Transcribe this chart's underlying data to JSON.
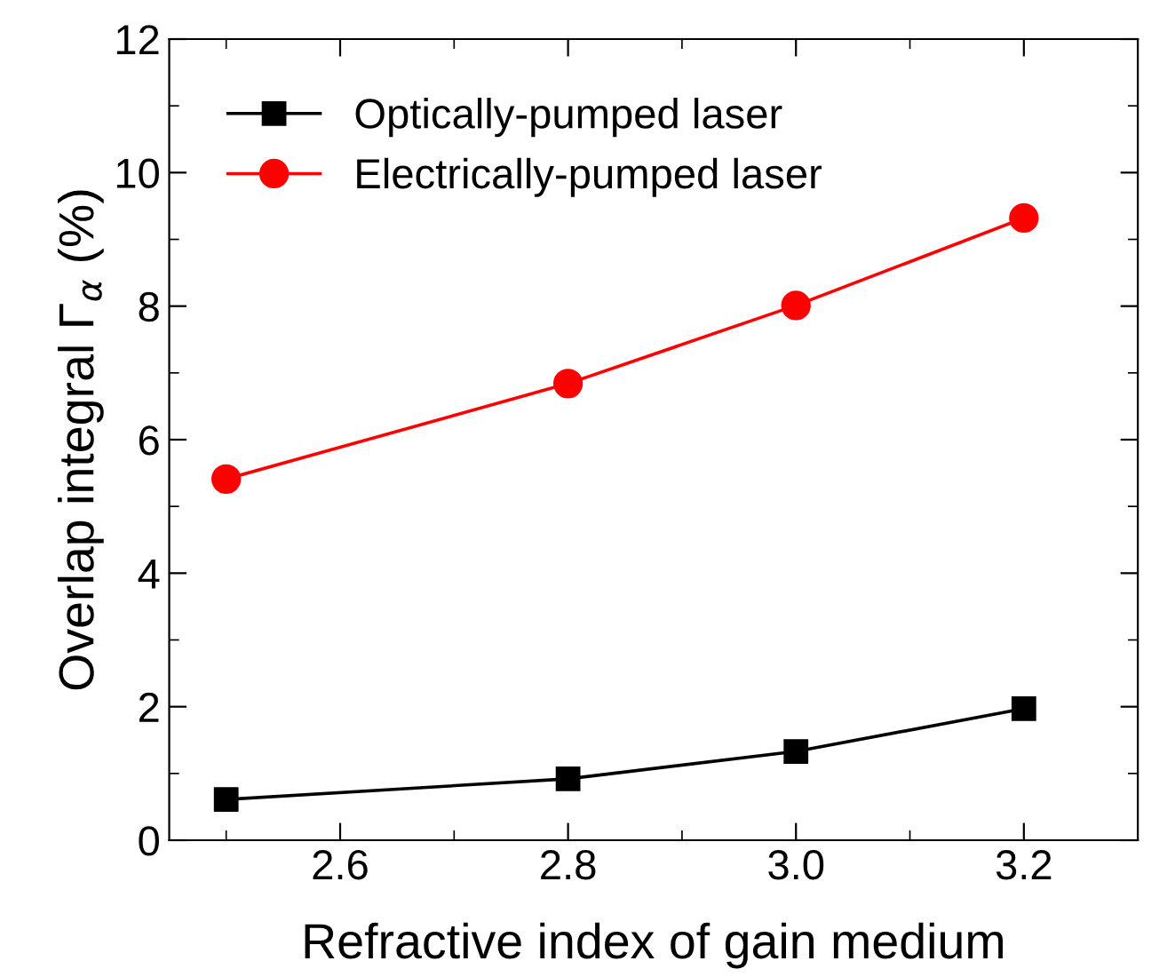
{
  "chart_data": {
    "type": "line",
    "xlabel": "Refractive index of gain medium",
    "ylabel": "Overlap integral Γ$_{α}$ (%)",
    "x": [
      2.5,
      2.8,
      3.0,
      3.2
    ],
    "series": [
      {
        "name": "Optically-pumped laser",
        "color": "#000000",
        "marker": "square",
        "values": [
          0.61,
          0.92,
          1.33,
          1.97
        ]
      },
      {
        "name": "Electrically-pumped laser",
        "color": "#ff0000",
        "marker": "circle",
        "values": [
          5.41,
          6.84,
          8.01,
          9.32
        ]
      }
    ],
    "xlim": [
      2.45,
      3.3
    ],
    "xticks": [
      {
        "value": 2.6,
        "label": "2.6"
      },
      {
        "value": 2.8,
        "label": "2.8"
      },
      {
        "value": 3.0,
        "label": "3.0"
      },
      {
        "value": 3.2,
        "label": "3.2"
      }
    ],
    "ylim": [
      0,
      12
    ],
    "yticks": [
      0,
      2,
      4,
      6,
      8,
      10,
      12
    ],
    "grid": false,
    "legend": "top left",
    "line_style": "solid"
  }
}
